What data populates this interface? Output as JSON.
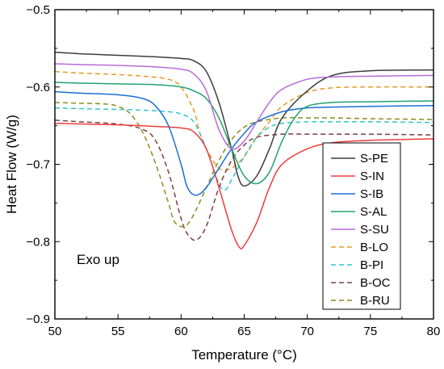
{
  "chart_data": {
    "type": "line",
    "xlabel": "Temperature (°C)",
    "ylabel": "Heat Flow (W/g)",
    "xlim": [
      50,
      80
    ],
    "ylim": [
      -0.9,
      -0.5
    ],
    "xticks": [
      50,
      55,
      60,
      65,
      70,
      75,
      80
    ],
    "xtick_labels": [
      "50",
      "55",
      "60",
      "65",
      "70",
      "75",
      "80"
    ],
    "yticks": [
      -0.9,
      -0.8,
      -0.7,
      -0.6,
      -0.5
    ],
    "ytick_labels": [
      "−0.9",
      "−0.8",
      "−0.7",
      "−0.6",
      "−0.5"
    ],
    "annotation": "Exo up",
    "legend_position": "right",
    "grid": false,
    "series": [
      {
        "name": "S-PE",
        "color": "#3c3c3c",
        "dash": "solid",
        "x": [
          50,
          52,
          55,
          58,
          60,
          61,
          62,
          63,
          64,
          64.5,
          65,
          66,
          67,
          68,
          70,
          72,
          75,
          80
        ],
        "y": [
          -0.555,
          -0.557,
          -0.559,
          -0.561,
          -0.563,
          -0.566,
          -0.58,
          -0.62,
          -0.68,
          -0.715,
          -0.728,
          -0.715,
          -0.68,
          -0.64,
          -0.605,
          -0.585,
          -0.579,
          -0.578
        ]
      },
      {
        "name": "S-IN",
        "color": "#ef3b3b",
        "dash": "solid",
        "x": [
          50,
          55,
          58,
          60,
          61,
          62,
          63,
          64,
          64.6,
          65,
          66,
          67,
          68,
          70,
          72,
          75,
          80
        ],
        "y": [
          -0.647,
          -0.649,
          -0.651,
          -0.653,
          -0.658,
          -0.68,
          -0.73,
          -0.785,
          -0.807,
          -0.805,
          -0.775,
          -0.73,
          -0.7,
          -0.68,
          -0.672,
          -0.669,
          -0.667
        ]
      },
      {
        "name": "S-IB",
        "color": "#1a6fd6",
        "dash": "solid",
        "x": [
          50,
          52,
          55,
          57,
          58,
          59,
          60,
          60.5,
          61.2,
          62,
          63,
          64,
          65,
          66,
          68,
          70,
          72,
          75,
          80
        ],
        "y": [
          -0.606,
          -0.608,
          -0.61,
          -0.615,
          -0.625,
          -0.65,
          -0.7,
          -0.73,
          -0.74,
          -0.73,
          -0.705,
          -0.68,
          -0.66,
          -0.645,
          -0.632,
          -0.627,
          -0.626,
          -0.625,
          -0.624
        ]
      },
      {
        "name": "S-AL",
        "color": "#21a36d",
        "dash": "solid",
        "x": [
          50,
          52,
          55,
          58,
          60,
          61,
          62,
          63,
          64,
          65,
          66,
          67,
          68,
          69,
          70,
          72,
          75,
          80
        ],
        "y": [
          -0.594,
          -0.595,
          -0.596,
          -0.597,
          -0.6,
          -0.605,
          -0.615,
          -0.64,
          -0.68,
          -0.715,
          -0.725,
          -0.71,
          -0.67,
          -0.64,
          -0.625,
          -0.62,
          -0.619,
          -0.618
        ]
      },
      {
        "name": "S-SU",
        "color": "#b86ad8",
        "dash": "solid",
        "x": [
          50,
          52,
          55,
          58,
          60,
          61,
          62,
          63,
          64,
          65,
          66,
          67,
          68,
          70,
          72,
          75,
          80
        ],
        "y": [
          -0.57,
          -0.571,
          -0.572,
          -0.574,
          -0.577,
          -0.583,
          -0.605,
          -0.655,
          -0.68,
          -0.67,
          -0.645,
          -0.62,
          -0.603,
          -0.59,
          -0.587,
          -0.586,
          -0.585
        ]
      },
      {
        "name": "B-LO",
        "color": "#e69a24",
        "dash": "dashed",
        "x": [
          50,
          52,
          55,
          57,
          59,
          60,
          61,
          61.5,
          62,
          63,
          64,
          65,
          66,
          67,
          68,
          70,
          72,
          75,
          80
        ],
        "y": [
          -0.58,
          -0.582,
          -0.584,
          -0.586,
          -0.59,
          -0.6,
          -0.63,
          -0.66,
          -0.68,
          -0.705,
          -0.705,
          -0.69,
          -0.665,
          -0.645,
          -0.625,
          -0.607,
          -0.601,
          -0.6,
          -0.6
        ]
      },
      {
        "name": "B-PI",
        "color": "#31c6cf",
        "dash": "dashed",
        "x": [
          50,
          52,
          55,
          57,
          59,
          60,
          61,
          62,
          63,
          63.5,
          64,
          65,
          66,
          67,
          68,
          70,
          72,
          75,
          80
        ],
        "y": [
          -0.627,
          -0.628,
          -0.629,
          -0.63,
          -0.632,
          -0.635,
          -0.645,
          -0.68,
          -0.725,
          -0.733,
          -0.72,
          -0.69,
          -0.665,
          -0.652,
          -0.647,
          -0.645,
          -0.645,
          -0.645,
          -0.646
        ]
      },
      {
        "name": "B-OC",
        "color": "#7d3d3d",
        "dash": "dashed",
        "x": [
          50,
          52,
          55,
          57,
          58,
          59,
          60,
          60.5,
          61.2,
          62,
          63,
          64,
          65,
          66,
          68,
          70,
          72,
          75,
          80
        ],
        "y": [
          -0.643,
          -0.645,
          -0.648,
          -0.655,
          -0.67,
          -0.71,
          -0.77,
          -0.79,
          -0.798,
          -0.78,
          -0.73,
          -0.695,
          -0.675,
          -0.665,
          -0.661,
          -0.661,
          -0.661,
          -0.661,
          -0.662
        ]
      },
      {
        "name": "B-RU",
        "color": "#8f8a1e",
        "dash": "dashed",
        "x": [
          50,
          52,
          54,
          55,
          56,
          57,
          58,
          59,
          59.5,
          60.3,
          61,
          62,
          63,
          64,
          65,
          66,
          68,
          70,
          72,
          75,
          80
        ],
        "y": [
          -0.62,
          -0.621,
          -0.622,
          -0.625,
          -0.635,
          -0.66,
          -0.7,
          -0.75,
          -0.775,
          -0.78,
          -0.765,
          -0.73,
          -0.695,
          -0.668,
          -0.652,
          -0.645,
          -0.64,
          -0.64,
          -0.64,
          -0.641,
          -0.642
        ]
      }
    ]
  }
}
